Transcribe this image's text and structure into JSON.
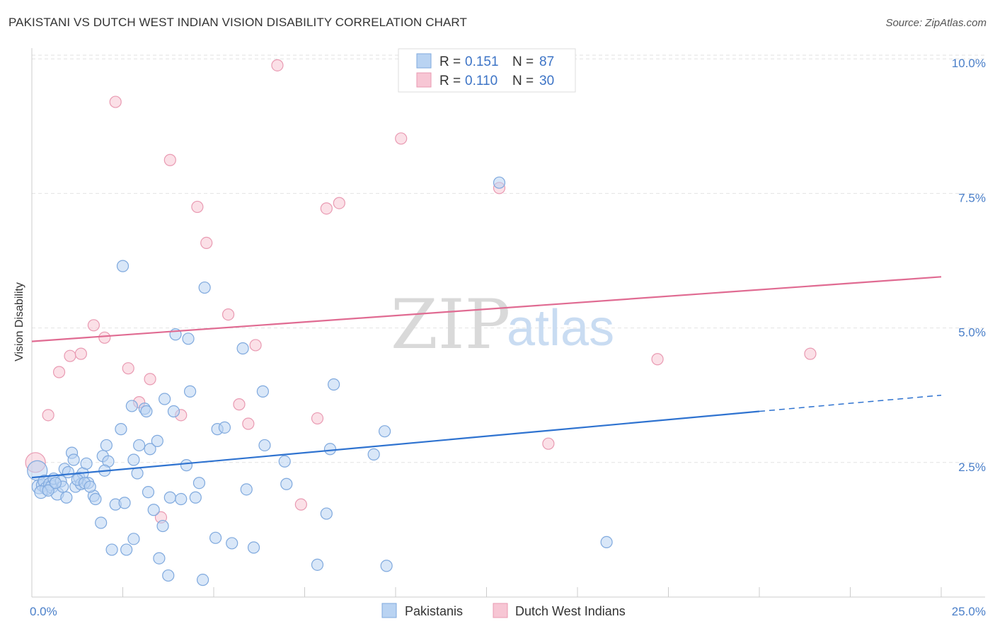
{
  "title": "PAKISTANI VS DUTCH WEST INDIAN VISION DISABILITY CORRELATION CHART",
  "source": "Source: ZipAtlas.com",
  "watermark": {
    "zip": "ZIP",
    "atlas": "atlas"
  },
  "colors": {
    "blue_fill": "#b9d3f2",
    "blue_stroke": "#7fa9de",
    "blue_line": "#2f73d0",
    "pink_fill": "#f7c6d4",
    "pink_stroke": "#e99ab2",
    "pink_line": "#e06b92",
    "tick_label": "#4a7fc9",
    "grid": "#e2e2e2"
  },
  "legend": {
    "blue": {
      "r_label": "R =",
      "r_value": "0.151",
      "n_label": "N =",
      "n_value": "87"
    },
    "pink": {
      "r_label": "R =",
      "r_value": "0.110",
      "n_label": "N =",
      "n_value": "30"
    }
  },
  "bottom_legend": {
    "blue": "Pakistanis",
    "pink": "Dutch West Indians"
  },
  "chart_data": {
    "type": "scatter",
    "xlabel": "",
    "ylabel": "Vision Disability",
    "xlim": [
      0,
      25
    ],
    "ylim": [
      0,
      10.2
    ],
    "x_tick_labels": [
      {
        "value": 0,
        "label": "0.0%"
      },
      {
        "value": 25,
        "label": "25.0%"
      }
    ],
    "x_minor_ticks": [
      0,
      2.5,
      5,
      7.5,
      10,
      12.5,
      15,
      17.5,
      20,
      22.5,
      25
    ],
    "y_ticks": [
      {
        "value": 2.5,
        "label": "2.5%"
      },
      {
        "value": 5.0,
        "label": "5.0%"
      },
      {
        "value": 7.5,
        "label": "7.5%"
      },
      {
        "value": 10.0,
        "label": "10.0%"
      }
    ],
    "series": [
      {
        "name": "Pakistanis",
        "color": "blue",
        "trend": {
          "x_start": 0,
          "y_start": 2.22,
          "x_solid_end": 20,
          "y_solid_end": 3.45,
          "x_dash_end": 25,
          "y_dash_end": 3.75
        },
        "points": [
          [
            0.15,
            2.35,
            14
          ],
          [
            0.2,
            2.05,
            10
          ],
          [
            0.3,
            2.08,
            9
          ],
          [
            0.35,
            2.15,
            9
          ],
          [
            0.4,
            2.02,
            9
          ],
          [
            0.5,
            2.1,
            9
          ],
          [
            0.55,
            2.05,
            9
          ],
          [
            0.6,
            2.2,
            8
          ],
          [
            0.7,
            1.92,
            9
          ],
          [
            0.8,
            2.15,
            8
          ],
          [
            0.85,
            2.05,
            8
          ],
          [
            0.9,
            2.38,
            8
          ],
          [
            1.0,
            2.32,
            8
          ],
          [
            1.1,
            2.68,
            8
          ],
          [
            1.15,
            2.55,
            8
          ],
          [
            1.2,
            2.05,
            8
          ],
          [
            1.3,
            2.22,
            8
          ],
          [
            1.35,
            2.1,
            8
          ],
          [
            1.4,
            2.3,
            8
          ],
          [
            1.5,
            2.48,
            8
          ],
          [
            1.55,
            2.12,
            8
          ],
          [
            1.7,
            1.88,
            8
          ],
          [
            1.75,
            1.82,
            8
          ],
          [
            1.9,
            1.38,
            8
          ],
          [
            1.95,
            2.62,
            8
          ],
          [
            2.05,
            2.82,
            8
          ],
          [
            2.1,
            2.52,
            8
          ],
          [
            2.2,
            0.88,
            8
          ],
          [
            2.3,
            1.72,
            8
          ],
          [
            2.45,
            3.12,
            8
          ],
          [
            2.5,
            6.15,
            8
          ],
          [
            2.55,
            1.75,
            8
          ],
          [
            2.6,
            0.88,
            8
          ],
          [
            2.75,
            3.55,
            8
          ],
          [
            2.8,
            2.55,
            8
          ],
          [
            2.8,
            1.08,
            8
          ],
          [
            2.9,
            2.3,
            8
          ],
          [
            2.95,
            2.82,
            8
          ],
          [
            3.1,
            3.5,
            8
          ],
          [
            3.15,
            3.45,
            8
          ],
          [
            3.2,
            1.95,
            8
          ],
          [
            3.25,
            2.75,
            8
          ],
          [
            3.35,
            1.62,
            8
          ],
          [
            3.45,
            2.9,
            8
          ],
          [
            3.5,
            0.72,
            8
          ],
          [
            3.6,
            1.32,
            8
          ],
          [
            3.65,
            3.68,
            8
          ],
          [
            3.75,
            0.4,
            8
          ],
          [
            3.8,
            1.85,
            8
          ],
          [
            3.9,
            3.45,
            8
          ],
          [
            3.95,
            4.88,
            8
          ],
          [
            4.1,
            1.82,
            8
          ],
          [
            4.25,
            2.45,
            8
          ],
          [
            4.3,
            4.8,
            8
          ],
          [
            4.35,
            3.82,
            8
          ],
          [
            4.5,
            1.85,
            8
          ],
          [
            4.6,
            2.12,
            8
          ],
          [
            4.7,
            0.32,
            8
          ],
          [
            4.75,
            5.75,
            8
          ],
          [
            5.05,
            1.1,
            8
          ],
          [
            5.1,
            3.12,
            8
          ],
          [
            5.3,
            3.15,
            8
          ],
          [
            5.5,
            1.0,
            8
          ],
          [
            5.8,
            4.62,
            8
          ],
          [
            5.9,
            2.0,
            8
          ],
          [
            6.1,
            0.92,
            8
          ],
          [
            6.35,
            3.82,
            8
          ],
          [
            6.4,
            2.82,
            8
          ],
          [
            6.95,
            2.52,
            8
          ],
          [
            7.0,
            2.1,
            8
          ],
          [
            7.85,
            0.6,
            8
          ],
          [
            8.1,
            1.55,
            8
          ],
          [
            8.2,
            2.75,
            8
          ],
          [
            8.3,
            3.95,
            8
          ],
          [
            9.4,
            2.65,
            8
          ],
          [
            9.7,
            3.08,
            8
          ],
          [
            9.75,
            0.58,
            8
          ],
          [
            12.85,
            7.7,
            8
          ],
          [
            15.8,
            1.02,
            8
          ],
          [
            0.25,
            1.95,
            9
          ],
          [
            0.45,
            1.98,
            8
          ],
          [
            0.65,
            2.12,
            8
          ],
          [
            0.95,
            1.85,
            8
          ],
          [
            1.25,
            2.18,
            8
          ],
          [
            1.45,
            2.12,
            8
          ],
          [
            1.6,
            2.05,
            8
          ],
          [
            2.0,
            2.35,
            8
          ]
        ]
      },
      {
        "name": "Dutch West Indians",
        "color": "pink",
        "trend": {
          "x_start": 0,
          "y_start": 4.75,
          "x_solid_end": 25,
          "y_solid_end": 5.95
        },
        "points": [
          [
            0.1,
            2.5,
            14
          ],
          [
            0.45,
            3.38,
            8
          ],
          [
            0.75,
            4.18,
            8
          ],
          [
            1.05,
            4.48,
            8
          ],
          [
            1.35,
            4.52,
            8
          ],
          [
            1.7,
            5.05,
            8
          ],
          [
            2.0,
            4.82,
            8
          ],
          [
            2.3,
            9.2,
            8
          ],
          [
            2.65,
            4.25,
            8
          ],
          [
            2.95,
            3.62,
            8
          ],
          [
            3.25,
            4.05,
            8
          ],
          [
            3.55,
            1.48,
            8
          ],
          [
            3.8,
            8.12,
            8
          ],
          [
            4.1,
            3.38,
            8
          ],
          [
            4.55,
            7.25,
            8
          ],
          [
            4.8,
            6.58,
            8
          ],
          [
            5.4,
            5.25,
            8
          ],
          [
            5.7,
            3.58,
            8
          ],
          [
            5.95,
            3.22,
            8
          ],
          [
            6.15,
            4.68,
            8
          ],
          [
            6.75,
            9.88,
            8
          ],
          [
            7.4,
            1.72,
            8
          ],
          [
            7.85,
            3.32,
            8
          ],
          [
            8.1,
            7.22,
            8
          ],
          [
            8.45,
            7.32,
            8
          ],
          [
            10.15,
            8.52,
            8
          ],
          [
            12.85,
            7.6,
            8
          ],
          [
            14.2,
            2.85,
            8
          ],
          [
            17.2,
            4.42,
            8
          ],
          [
            21.4,
            4.52,
            8
          ]
        ]
      }
    ]
  }
}
